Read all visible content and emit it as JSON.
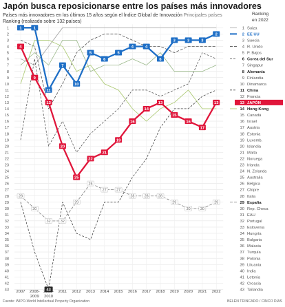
{
  "title": "Japón busca reposicionarse entre los países más innovadores",
  "subtitle_main": "Países más innovadores en los últimos 15 años según el Índice Global de Innovación",
  "subtitle_extra": "Principales países",
  "subtitle_ranking": "Ranking (realizado sobre 132 países)",
  "source": "Fuente: WIPO-World Intellectual Property Organization",
  "credit": "BELÉN TRINCADO / CINCO DÍAS",
  "colors": {
    "eeuu": "#1f6fc6",
    "japon": "#e0163b",
    "espana": "#8a8a8a",
    "china": "#444444",
    "korea": "#5a5a5a",
    "swiss": "#a8a8a8",
    "hk": "#b0cc7a",
    "uk": "#555555"
  },
  "chart_data": {
    "type": "line",
    "title": "Japón busca reposicionarse entre los países más innovadores",
    "ylabel": "Ranking (realizado sobre 132 países)",
    "right_header": [
      "Ranking",
      "en 2022"
    ],
    "ylim": [
      1,
      43
    ],
    "y_inverted": true,
    "x_labels": [
      "2007",
      "2008-2009",
      "2009-2010",
      "2011",
      "2012",
      "2013",
      "2014",
      "2015",
      "2016",
      "2017",
      "2018",
      "2019",
      "2020",
      "2021",
      "2022"
    ],
    "left_ticks": [
      1,
      2,
      3,
      4,
      5,
      6,
      7,
      8,
      9,
      10,
      11,
      12,
      13,
      14,
      15,
      16,
      17,
      18,
      19,
      20,
      21,
      22,
      23,
      24,
      25,
      26,
      27,
      28,
      29,
      30,
      31,
      32,
      33,
      34,
      35,
      36,
      37,
      38,
      39,
      40,
      41,
      42,
      43
    ],
    "ranking_2022": [
      {
        "rank": "1",
        "name": "Suiza",
        "highlight": false
      },
      {
        "rank": "2",
        "name": "EE UU",
        "highlight": "eeuu"
      },
      {
        "rank": "3",
        "name": "Suecia",
        "highlight": false
      },
      {
        "rank": "4",
        "name": "R. Unido",
        "highlight": false
      },
      {
        "rank": "5",
        "name": "P. Bajos",
        "highlight": false
      },
      {
        "rank": "6",
        "name": "Corea del Sur",
        "highlight": "bold"
      },
      {
        "rank": "7",
        "name": "Singapur",
        "highlight": false
      },
      {
        "rank": "8",
        "name": "Alemania",
        "highlight": "bold"
      },
      {
        "rank": "9",
        "name": "Finlandia",
        "highlight": false
      },
      {
        "rank": "10",
        "name": "Dinamarca",
        "highlight": false
      },
      {
        "rank": "11",
        "name": "China",
        "highlight": "bold"
      },
      {
        "rank": "12",
        "name": "Francia",
        "highlight": false
      },
      {
        "rank": "13",
        "name": "JAPÓN",
        "highlight": "japon"
      },
      {
        "rank": "14",
        "name": "Hong Kong",
        "highlight": "bold"
      },
      {
        "rank": "15",
        "name": "Canadá",
        "highlight": false
      },
      {
        "rank": "16",
        "name": "Israel",
        "highlight": false
      },
      {
        "rank": "17",
        "name": "Austria",
        "highlight": false
      },
      {
        "rank": "18",
        "name": "Estonia",
        "highlight": false
      },
      {
        "rank": "19",
        "name": "Luxemb.",
        "highlight": false
      },
      {
        "rank": "20",
        "name": "Islandia",
        "highlight": false
      },
      {
        "rank": "21",
        "name": "Malta",
        "highlight": false
      },
      {
        "rank": "22",
        "name": "Noruega",
        "highlight": false
      },
      {
        "rank": "23",
        "name": "Irlanda",
        "highlight": false
      },
      {
        "rank": "24",
        "name": "N. Zelanda",
        "highlight": false
      },
      {
        "rank": "25",
        "name": "Australia",
        "highlight": false
      },
      {
        "rank": "26",
        "name": "Bélgica",
        "highlight": false
      },
      {
        "rank": "27",
        "name": "Chipre",
        "highlight": false
      },
      {
        "rank": "28",
        "name": "Italia",
        "highlight": false
      },
      {
        "rank": "29",
        "name": "España",
        "highlight": "bold"
      },
      {
        "rank": "30",
        "name": "Rep. Checa",
        "highlight": false
      },
      {
        "rank": "31",
        "name": "EAU",
        "highlight": false
      },
      {
        "rank": "32",
        "name": "Portugal",
        "highlight": false
      },
      {
        "rank": "33",
        "name": "Eslovenia",
        "highlight": false
      },
      {
        "rank": "34",
        "name": "Hungría",
        "highlight": false
      },
      {
        "rank": "35",
        "name": "Bulgaria",
        "highlight": false
      },
      {
        "rank": "36",
        "name": "Malasia",
        "highlight": false
      },
      {
        "rank": "37",
        "name": "Turquía",
        "highlight": false
      },
      {
        "rank": "38",
        "name": "Polonia",
        "highlight": false
      },
      {
        "rank": "39",
        "name": "Lituania",
        "highlight": false
      },
      {
        "rank": "40",
        "name": "India",
        "highlight": false
      },
      {
        "rank": "41",
        "name": "Letonia",
        "highlight": false
      },
      {
        "rank": "42",
        "name": "Croacia",
        "highlight": false
      },
      {
        "rank": "43",
        "name": "Tailandia",
        "highlight": false
      }
    ],
    "series": [
      {
        "name": "Suiza",
        "color": "#a8a8a8",
        "dash": "",
        "width": 0.9,
        "labeled": false,
        "values": [
          6,
          7,
          4,
          1,
          1,
          1,
          1,
          1,
          1,
          1,
          1,
          1,
          1,
          1,
          1
        ]
      },
      {
        "name": "China",
        "color": "#444444",
        "dash": "3,2",
        "width": 0.8,
        "labeled": false,
        "values": [
          29,
          37,
          43,
          29,
          34,
          35,
          29,
          29,
          25,
          22,
          17,
          14,
          14,
          12,
          11
        ]
      },
      {
        "name": "Corea del Sur",
        "color": "#5a5a5a",
        "dash": "3,2",
        "width": 0.8,
        "labeled": false,
        "values": [
          19,
          6,
          20,
          16,
          21,
          18,
          16,
          14,
          11,
          11,
          12,
          11,
          10,
          5,
          6
        ]
      },
      {
        "name": "R. Unido",
        "color": "#555555",
        "dash": "4,2",
        "width": 0.8,
        "labeled": false,
        "values": [
          3,
          4,
          14,
          10,
          5,
          3,
          2,
          2,
          3,
          4,
          4,
          5,
          4,
          4,
          4
        ]
      },
      {
        "name": "Hong Kong",
        "color": "#b0cc7a",
        "dash": "",
        "width": 0.9,
        "labeled": false,
        "values": [
          10,
          3,
          3,
          4,
          8,
          7,
          10,
          11,
          14,
          16,
          14,
          13,
          11,
          14,
          14
        ]
      },
      {
        "name": "Singapur",
        "color": "#9ab88a",
        "dash": "",
        "width": 0.8,
        "labeled": false,
        "values": [
          7,
          5,
          7,
          3,
          3,
          8,
          7,
          7,
          6,
          7,
          5,
          8,
          8,
          8,
          7
        ]
      },
      {
        "name": "España",
        "color": "#8a8a8a",
        "dash": "4,2",
        "width": 0.9,
        "labeled": true,
        "values": [
          28,
          30,
          32,
          32,
          29,
          26,
          27,
          27,
          28,
          28,
          28,
          29,
          30,
          30,
          29
        ]
      },
      {
        "name": "JAPÓN",
        "color": "#e0163b",
        "dash": "",
        "width": 2.3,
        "labeled": true,
        "values": [
          4,
          9,
          13,
          20,
          25,
          22,
          21,
          19,
          16,
          14,
          13,
          15,
          16,
          17,
          13
        ]
      },
      {
        "name": "EE UU",
        "color": "#1f6fc6",
        "dash": "",
        "width": 2.3,
        "labeled": true,
        "values": [
          1,
          1,
          11,
          7,
          10,
          5,
          6,
          5,
          4,
          4,
          6,
          3,
          3,
          3,
          2
        ]
      }
    ]
  }
}
